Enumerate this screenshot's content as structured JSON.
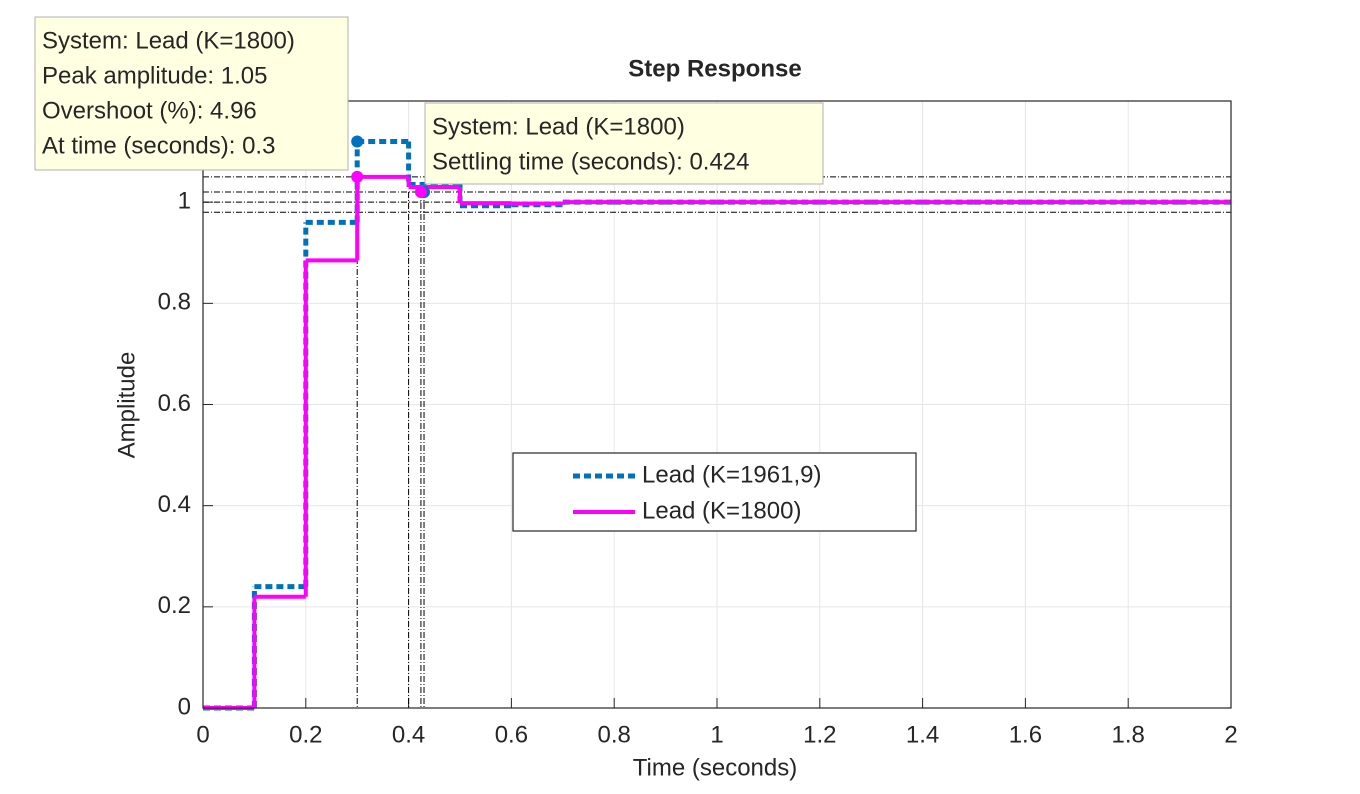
{
  "chart_data": {
    "type": "stairs",
    "title": "Step Response",
    "xlabel": "Time (seconds)",
    "ylabel": "Amplitude",
    "x": [
      0,
      0.1,
      0.2,
      0.3,
      0.4,
      0.5,
      0.6,
      0.7,
      0.8,
      0.9,
      1,
      1.1,
      1.2,
      1.3,
      1.4,
      1.5,
      1.6,
      1.7,
      1.8,
      1.9,
      2
    ],
    "series": [
      {
        "name": "Lead (K=1961,9)",
        "color": "#0072bd",
        "style": "dashed",
        "values": [
          0,
          0.24,
          0.96,
          1.12,
          1.035,
          0.993,
          0.995,
          1,
          1,
          1,
          1,
          1,
          1,
          1,
          1,
          1,
          1,
          1,
          1,
          1,
          1
        ]
      },
      {
        "name": "Lead (K=1800)",
        "color": "#ff00ff",
        "style": "solid",
        "values": [
          0,
          0.22,
          0.885,
          1.05,
          1.03,
          0.998,
          0.997,
          1,
          1,
          1,
          1,
          1,
          1,
          1,
          1,
          1,
          1,
          1,
          1,
          1,
          1
        ]
      }
    ],
    "xlim": [
      0,
      2
    ],
    "ylim": [
      0,
      1.2
    ],
    "xticks": [
      0,
      0.2,
      0.4,
      0.6,
      0.8,
      1,
      1.2,
      1.4,
      1.6,
      1.8,
      2
    ],
    "yticks": [
      0,
      0.2,
      0.4,
      0.6,
      0.8,
      1
    ],
    "grid": true,
    "legend": "center",
    "reference_y": [
      1.05,
      1.02,
      1,
      0.98
    ],
    "reference_x": [
      0.3,
      0.4,
      0.424,
      0.43
    ],
    "markers": [
      {
        "x": 0.3,
        "y": 1.12,
        "color": "#0072bd"
      },
      {
        "x": 0.43,
        "y": 1.02,
        "color": "#0072bd"
      },
      {
        "x": 0.3,
        "y": 1.05,
        "color": "#ff00ff"
      },
      {
        "x": 0.424,
        "y": 1.02,
        "color": "#ff00ff"
      }
    ],
    "annotations": [
      {
        "lines": [
          "System: Lead (K=1800)",
          "Peak amplitude: 1.05",
          "Overshoot (%): 4.96",
          "At time (seconds): 0.3"
        ]
      },
      {
        "lines": [
          "System: Lead (K=1800)",
          "Settling time (seconds): 0.424"
        ]
      }
    ]
  }
}
